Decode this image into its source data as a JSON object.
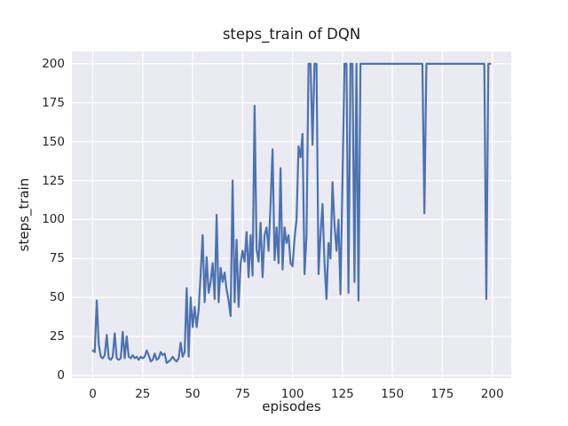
{
  "chart_data": {
    "type": "line",
    "title": "steps_train of DQN",
    "xlabel": "episodes",
    "ylabel": "steps_train",
    "x_ticks": [
      0,
      25,
      50,
      75,
      100,
      125,
      150,
      175,
      200
    ],
    "y_ticks": [
      0,
      25,
      50,
      75,
      100,
      125,
      150,
      175,
      200
    ],
    "xlim": [
      -10.45,
      209.45
    ],
    "ylim": [
      -1.71,
      207.88
    ],
    "grid": true,
    "legend_position": "none",
    "line_color": "#4c72b0",
    "line_width": 2.2,
    "axes_background": "#eaeaf2",
    "grid_color": "#ffffff",
    "figure_background": "#ffffff",
    "text_color": "#262626",
    "x_start": 0,
    "x_step": 1,
    "values": [
      16,
      15,
      48,
      20,
      12,
      11,
      13,
      26,
      11,
      10,
      12,
      27,
      11,
      10,
      11,
      28,
      11,
      25,
      12,
      11,
      13,
      11,
      12,
      10,
      12,
      11,
      12,
      16,
      13,
      9,
      10,
      14,
      10,
      11,
      15,
      13,
      14,
      8,
      9,
      10,
      12,
      10,
      9,
      11,
      21,
      12,
      15,
      56,
      12,
      50,
      31,
      44,
      31,
      42,
      65,
      90,
      47,
      76,
      53,
      60,
      72,
      49,
      103,
      47,
      69,
      60,
      66,
      55,
      48,
      38,
      125,
      47,
      87,
      44,
      72,
      80,
      73,
      92,
      63,
      90,
      64,
      173,
      81,
      73,
      98,
      63,
      90,
      95,
      80,
      110,
      145,
      74,
      95,
      72,
      133,
      68,
      95,
      85,
      90,
      72,
      70,
      88,
      100,
      147,
      140,
      155,
      65,
      90,
      200,
      200,
      148,
      200,
      200,
      65,
      90,
      110,
      72,
      49,
      85,
      75,
      124,
      97,
      80,
      100,
      52,
      125,
      200,
      200,
      53,
      200,
      200,
      60,
      200,
      48,
      200,
      200,
      200,
      200,
      200,
      200,
      200,
      200,
      200,
      200,
      200,
      200,
      200,
      200,
      200,
      200,
      200,
      200,
      200,
      200,
      200,
      200,
      200,
      200,
      200,
      200,
      200,
      200,
      200,
      200,
      200,
      200,
      104,
      200,
      200,
      200,
      200,
      200,
      200,
      200,
      200,
      200,
      200,
      200,
      200,
      200,
      200,
      200,
      200,
      200,
      200,
      200,
      200,
      200,
      200,
      200,
      200,
      200,
      200,
      200,
      200,
      200,
      200,
      49,
      200,
      200
    ]
  }
}
